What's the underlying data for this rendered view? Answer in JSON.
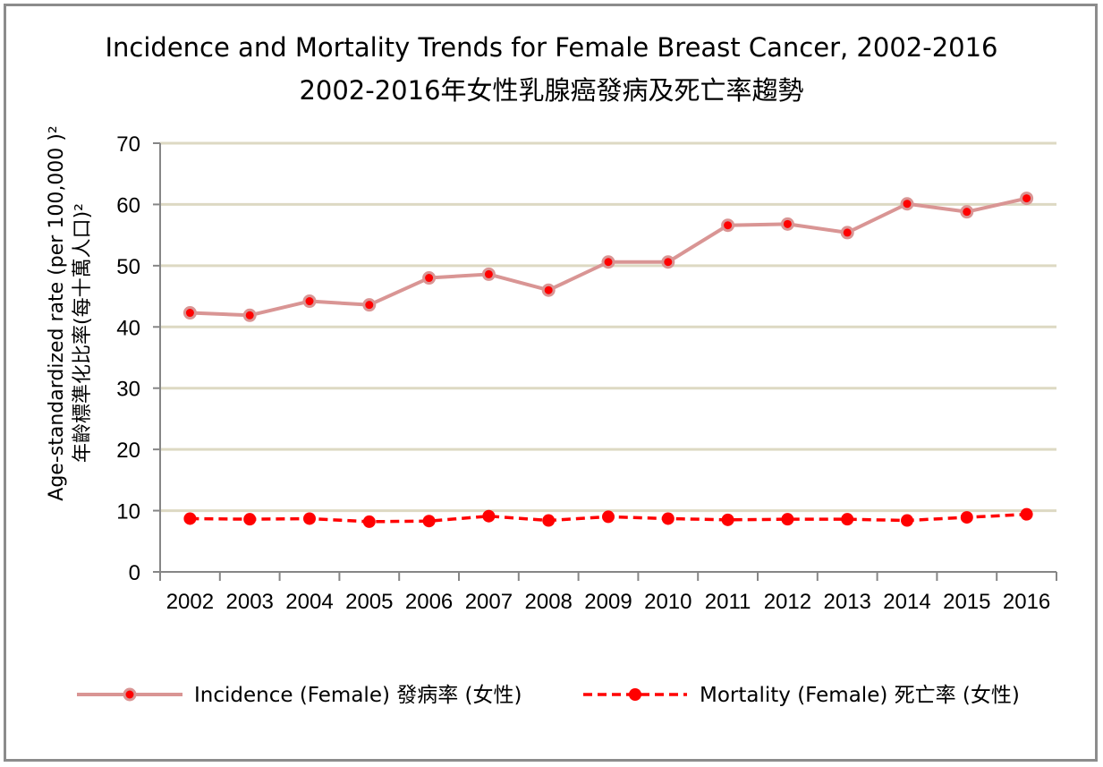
{
  "chart_data": {
    "type": "line",
    "title": "Incidence and Mortality Trends for Female Breast Cancer, 2002-2016",
    "subtitle": "2002-2016年女性乳腺癌發病及死亡率趨勢",
    "ylabel": "Age-standardized rate (per 100,000 )²",
    "ylabel_zh": "年齡標準化比率(每十萬人口)²",
    "xlabel": "",
    "ylim": [
      0,
      70
    ],
    "yticks": [
      "0",
      "10",
      "20",
      "30",
      "40",
      "50",
      "60",
      "70"
    ],
    "categories": [
      "2002",
      "2003",
      "2004",
      "2005",
      "2006",
      "2007",
      "2008",
      "2009",
      "2010",
      "2011",
      "2012",
      "2013",
      "2014",
      "2015",
      "2016"
    ],
    "grid": true,
    "legend_position": "bottom",
    "series": [
      {
        "name": "Incidence (Female) 發病率 (女性)",
        "values": [
          42.3,
          41.9,
          44.2,
          43.6,
          48.0,
          48.6,
          46.0,
          50.6,
          50.6,
          56.6,
          56.8,
          55.4,
          60.1,
          58.8,
          61.0
        ],
        "style": "solid",
        "line_color": "#d99594",
        "marker_color": "#ff0000"
      },
      {
        "name": "Mortality (Female) 死亡率 (女性)",
        "values": [
          8.7,
          8.6,
          8.7,
          8.2,
          8.3,
          9.1,
          8.4,
          9.0,
          8.7,
          8.5,
          8.6,
          8.6,
          8.4,
          8.9,
          9.4
        ],
        "style": "dashed",
        "line_color": "#ff0000",
        "marker_color": "#ff0000"
      }
    ],
    "colors": {
      "grid": "#ddd9c3",
      "axis": "#868686",
      "frame": "#8c8c8c"
    }
  }
}
